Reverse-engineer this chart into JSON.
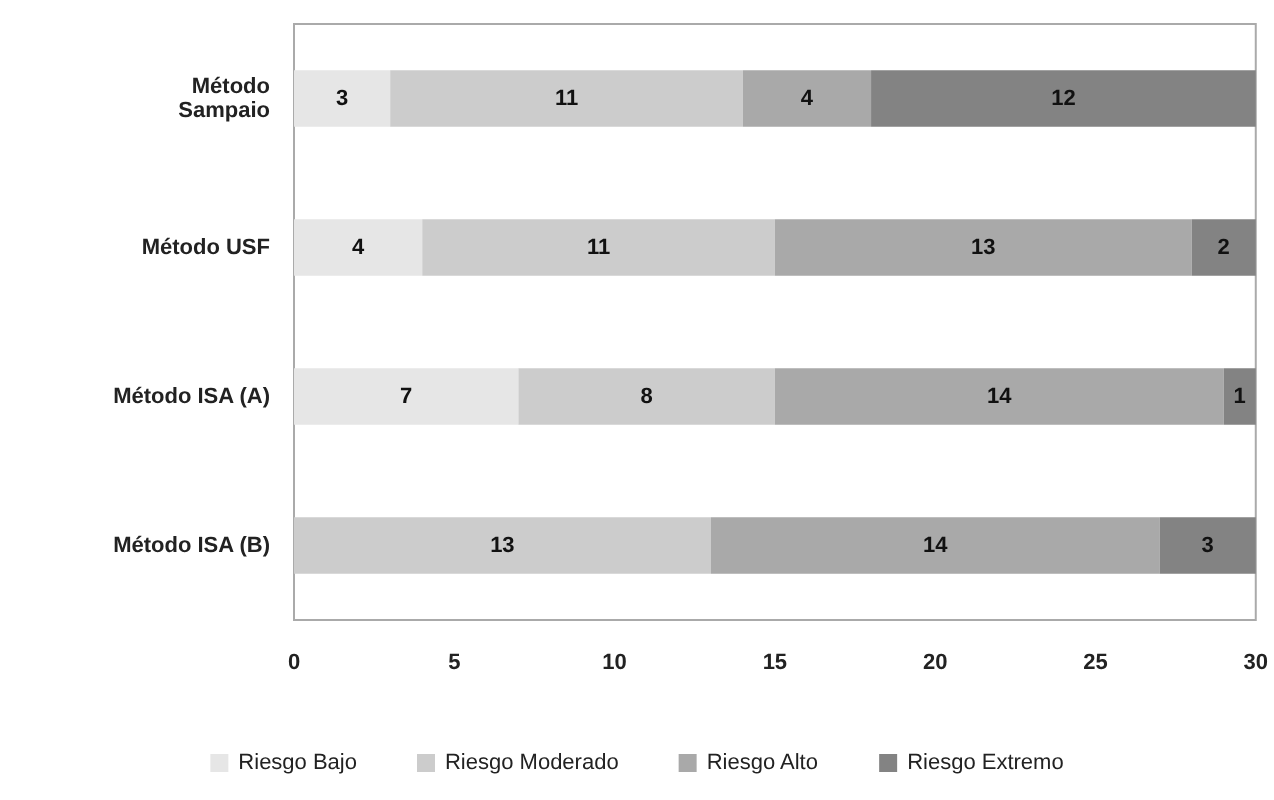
{
  "chart_data": {
    "type": "bar",
    "orientation": "horizontal",
    "stacked": true,
    "data_labels": true,
    "legend": "bottom",
    "grid": false,
    "categories": [
      "Método\nSampaio",
      "Método USF",
      "Método ISA (A)",
      "Método ISA (B)"
    ],
    "xlim": [
      0,
      30
    ],
    "xticks": [
      0,
      5,
      10,
      15,
      20,
      25,
      30
    ],
    "series": [
      {
        "name": "Riesgo Bajo",
        "color": "#e6e6e6",
        "values": [
          3,
          4,
          7,
          null
        ]
      },
      {
        "name": "Riesgo Moderado",
        "color": "#cccccc",
        "values": [
          11,
          11,
          8,
          13
        ]
      },
      {
        "name": "Riesgo Alto",
        "color": "#a9a9a9",
        "values": [
          4,
          13,
          14,
          14
        ]
      },
      {
        "name": "Riesgo Extremo",
        "color": "#838383",
        "values": [
          12,
          2,
          1,
          3
        ]
      }
    ]
  }
}
